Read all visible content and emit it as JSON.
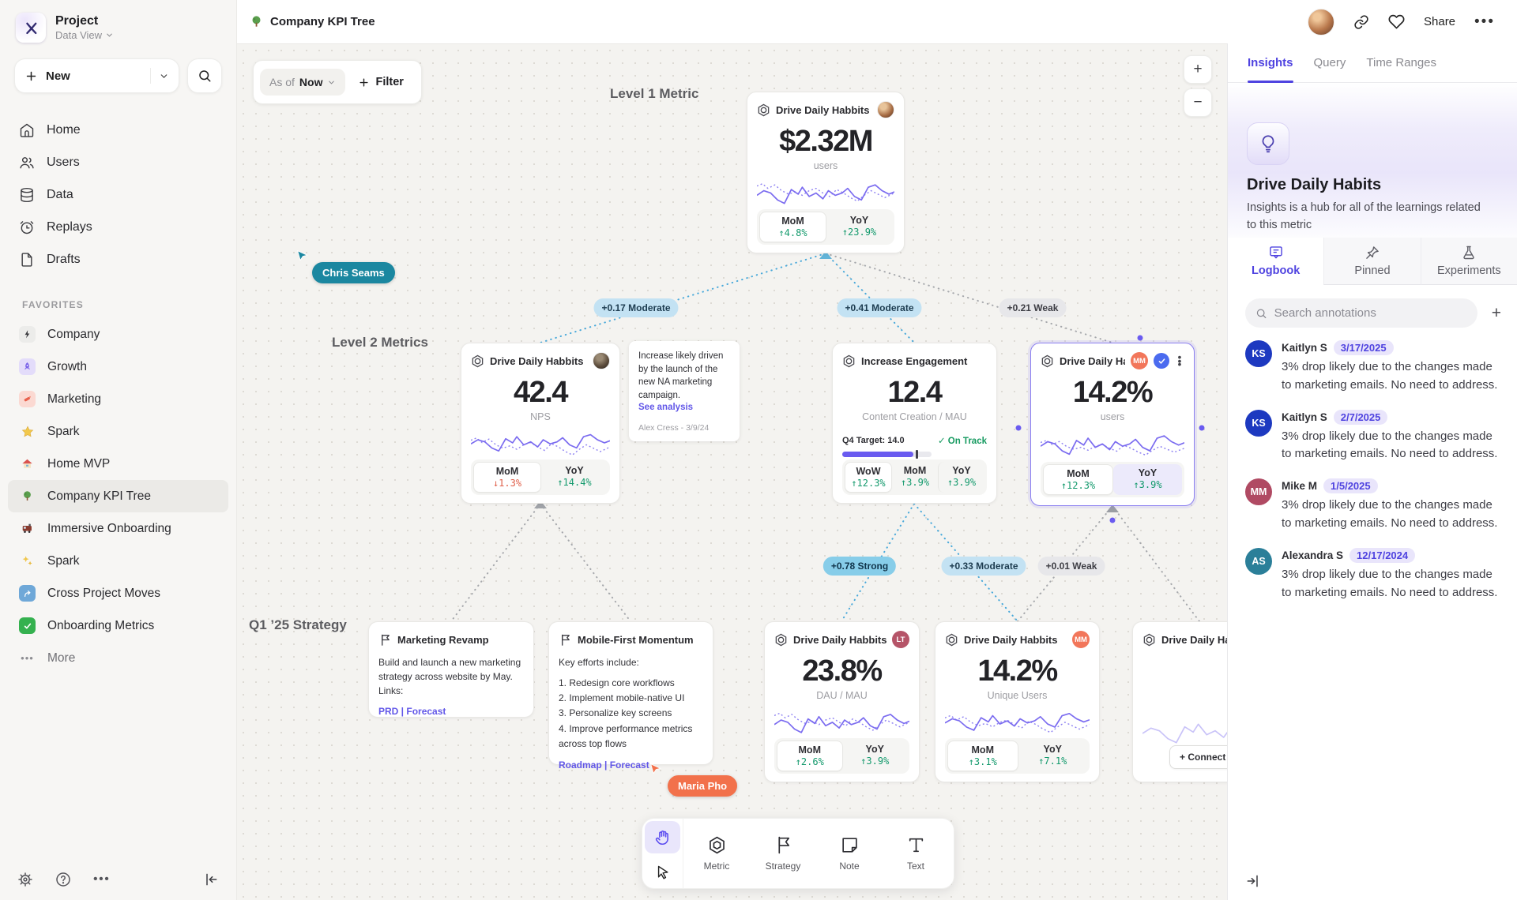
{
  "sidebar": {
    "project": {
      "name": "Project",
      "view": "Data View"
    },
    "new_label": "New",
    "nav": [
      {
        "label": "Home"
      },
      {
        "label": "Users"
      },
      {
        "label": "Data"
      },
      {
        "label": "Replays"
      },
      {
        "label": "Drafts"
      }
    ],
    "favorites_header": "FAVORITES",
    "favorites": [
      {
        "label": "Company"
      },
      {
        "label": "Growth"
      },
      {
        "label": "Marketing"
      },
      {
        "label": "Spark"
      },
      {
        "label": "Home MVP"
      },
      {
        "label": "Company KPI Tree"
      },
      {
        "label": "Immersive Onboarding"
      },
      {
        "label": "Spark"
      },
      {
        "label": "Cross Project Moves"
      },
      {
        "label": "Onboarding Metrics"
      }
    ],
    "more_label": "More"
  },
  "topbar": {
    "title": "Company KPI Tree",
    "share": "Share"
  },
  "canvas": {
    "as_of": "As of",
    "as_of_value": "Now",
    "filter": "Filter",
    "zoom_in": "+",
    "zoom_out": "−",
    "sections": {
      "level1": "Level 1 Metric",
      "level2": "Level 2 Metrics",
      "strategy": "Q1 ’25 Strategy"
    },
    "cards": {
      "level1": {
        "title": "Drive Daily Habbits",
        "value": "$2.32M",
        "unit": "users",
        "mom_label": "MoM",
        "mom_value": "↑4.8%",
        "yoy_label": "YoY",
        "yoy_value": "↑23.9%"
      },
      "nps": {
        "title": "Drive Daily Habbits",
        "value": "42.4",
        "unit": "NPS",
        "mom_label": "MoM",
        "mom_value": "↓1.3%",
        "yoy_label": "YoY",
        "yoy_value": "↑14.4%"
      },
      "engagement": {
        "title": "Increase Engagement",
        "value": "12.4",
        "unit": "Content Creation / MAU",
        "target": "Q4 Target: 14.0",
        "status": "✓ On Track",
        "wow_label": "WoW",
        "wow_value": "↑12.3%",
        "mom_label": "MoM",
        "mom_value": "↑3.9%",
        "yoy_label": "YoY",
        "yoy_value": "↑3.9%"
      },
      "selected": {
        "title": "Drive Daily Habb..",
        "badge": "MM",
        "value": "14.2%",
        "unit": "users",
        "mom_label": "MoM",
        "mom_value": "↑12.3%",
        "yoy_label": "YoY",
        "yoy_value": "↑3.9%"
      },
      "dau": {
        "title": "Drive Daily Habbits",
        "badge": "LT",
        "value": "23.8%",
        "unit": "DAU / MAU",
        "mom_label": "MoM",
        "mom_value": "↑2.6%",
        "yoy_label": "YoY",
        "yoy_value": "↑3.9%"
      },
      "unique": {
        "title": "Drive Daily Habbits",
        "badge": "MM",
        "value": "14.2%",
        "unit": "Unique Users",
        "mom_label": "MoM",
        "mom_value": "↑3.1%",
        "yoy_label": "YoY",
        "yoy_value": "↑7.1%"
      },
      "partial": {
        "title": "Drive Daily Hab",
        "connect": "+ Connect"
      }
    },
    "note": {
      "text": "Increase likely driven by the launch of the new NA marketing campaign.",
      "link": "See analysis",
      "author": "Alex Cress - 3/9/24"
    },
    "strategies": {
      "marketing": {
        "title": "Marketing Revamp",
        "body": "Build and launch a new marketing strategy across website by May. Links:",
        "links": "PRD | Forecast"
      },
      "mobile": {
        "title": "Mobile-First Momentum",
        "intro": "Key efforts include:",
        "item1": "1. Redesign core workflows",
        "item2": "2. Implement mobile-native UI",
        "item3": "3. Personalize key screens",
        "item4": "4. Improve performance metrics across top flows",
        "links": "Roadmap | Forecast"
      }
    },
    "edges": [
      {
        "label": "+0.17 Moderate",
        "type": "moderate"
      },
      {
        "label": "+0.41 Moderate",
        "type": "moderate"
      },
      {
        "label": "+0.21 Weak",
        "type": "weak"
      },
      {
        "label": "+0.78 Strong",
        "type": "strong"
      },
      {
        "label": "+0.33 Moderate",
        "type": "moderate"
      },
      {
        "label": "+0.01 Weak",
        "type": "weak"
      }
    ],
    "cursors": [
      {
        "name": "Chris Seams",
        "color": "#1b87a0"
      },
      {
        "name": "Maria Pho",
        "color": "#f2714b"
      }
    ],
    "toolbar": {
      "tools": [
        {
          "label": "Metric"
        },
        {
          "label": "Strategy"
        },
        {
          "label": "Note"
        },
        {
          "label": "Text"
        }
      ]
    }
  },
  "panel": {
    "tabs": [
      {
        "label": "Insights"
      },
      {
        "label": "Query"
      },
      {
        "label": "Time Ranges"
      }
    ],
    "hero": {
      "title": "Drive Daily Habits",
      "description": "Insights is a hub for all of the learnings related to this metric"
    },
    "subtabs": [
      {
        "label": "Logbook"
      },
      {
        "label": "Pinned"
      },
      {
        "label": "Experiments"
      }
    ],
    "search_placeholder": "Search annotations",
    "annotations": [
      {
        "initials": "KS",
        "name": "Kaitlyn S",
        "date": "3/17/2025",
        "color": "#1d39c0",
        "text": "3% drop likely due to the changes made to marketing emails. No need to address."
      },
      {
        "initials": "KS",
        "name": "Kaitlyn S",
        "date": "2/7/2025",
        "color": "#1d39c0",
        "text": "3% drop likely due to the changes made to marketing emails. No need to address."
      },
      {
        "initials": "MM",
        "name": "Mike M",
        "date": "1/5/2025",
        "color": "#b04a63",
        "text": "3% drop likely due to the changes made to marketing emails. No need to address."
      },
      {
        "initials": "AS",
        "name": "Alexandra S",
        "date": "12/17/2024",
        "color": "#2b7f99",
        "text": "3% drop likely due to the changes made to marketing emails. No need to address."
      }
    ]
  }
}
